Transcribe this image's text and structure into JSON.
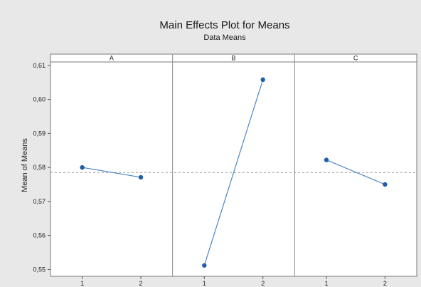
{
  "chart_data": {
    "type": "line",
    "title": "Main Effects Plot for Means",
    "subtitle": "Data Means",
    "ylabel": "Mean of Means",
    "xlabel": "",
    "ylim": [
      0.548,
      0.611
    ],
    "yticks": [
      "0,61",
      "0,60",
      "0,59",
      "0,58",
      "0,57",
      "0,56",
      "0,55"
    ],
    "ytick_values": [
      0.61,
      0.6,
      0.59,
      0.58,
      0.57,
      0.56,
      0.55
    ],
    "reference_line": 0.5785,
    "grid": false,
    "panels": [
      {
        "name": "A",
        "categories": [
          "1",
          "2"
        ],
        "values": [
          0.58,
          0.5771
        ]
      },
      {
        "name": "B",
        "categories": [
          "1",
          "2"
        ],
        "values": [
          0.5512,
          0.6058
        ]
      },
      {
        "name": "C",
        "categories": [
          "1",
          "2"
        ],
        "values": [
          0.5822,
          0.575
        ]
      }
    ]
  },
  "colors": {
    "background": "#e8e8e8",
    "plot_background": "#ffffff",
    "series_line": "#4f86c6",
    "series_marker": "#1f5fa8",
    "reference_line": "#9a9a9a",
    "panel_header": "#ffffff"
  }
}
